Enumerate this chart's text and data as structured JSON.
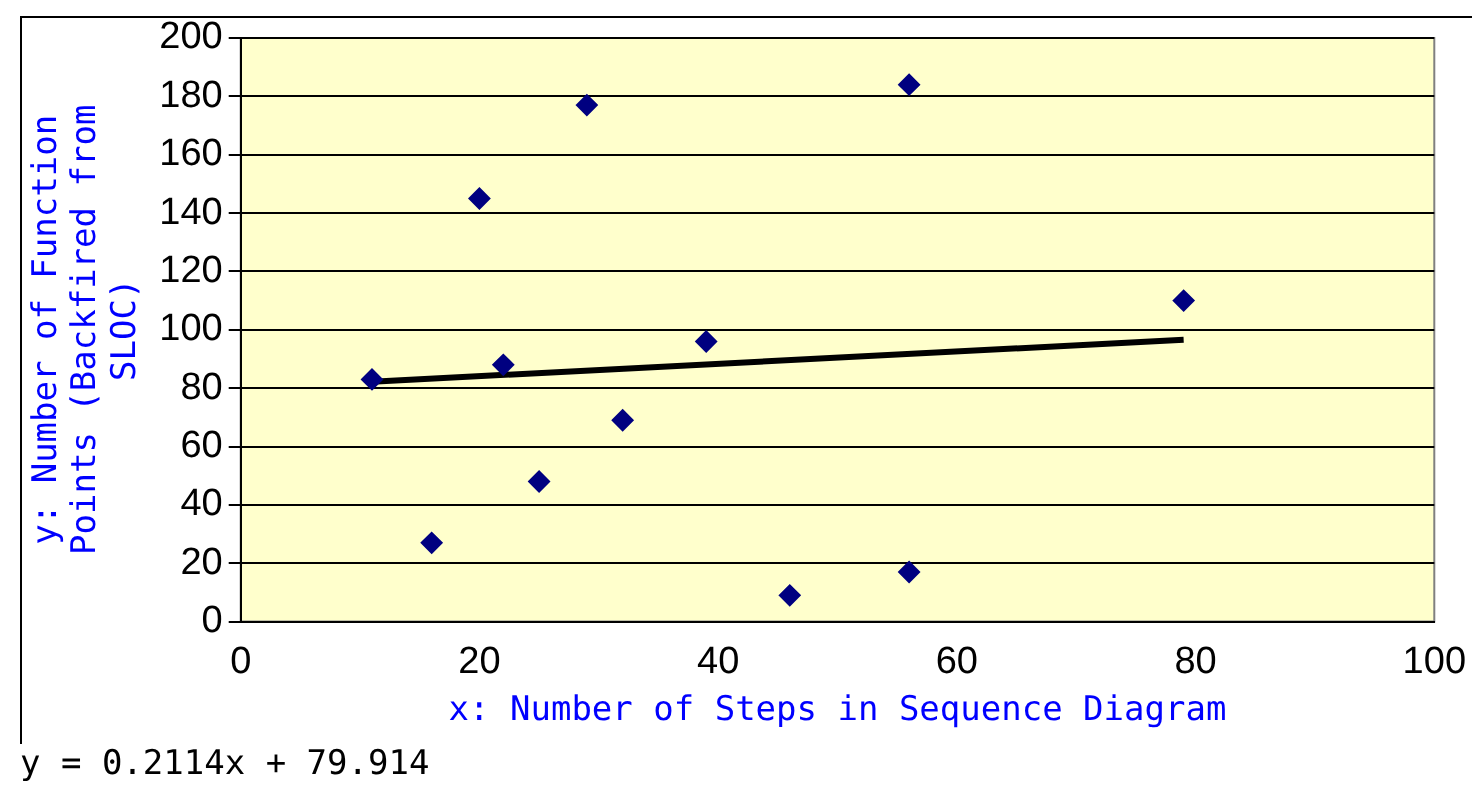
{
  "chart_data": {
    "type": "scatter",
    "xlabel": "x: Number of Steps in Sequence Diagram",
    "ylabel": "y: Number of Function Points (Backfired from SLOC)",
    "annotations": [
      "y = 0.2114x + 79.914"
    ],
    "xlim": [
      0,
      100
    ],
    "xticks": [
      0,
      20,
      40,
      60,
      80,
      100
    ],
    "ylim": [
      0,
      200
    ],
    "yticks": [
      0,
      20,
      40,
      60,
      80,
      100,
      120,
      140,
      160,
      180,
      200
    ],
    "grid": "y",
    "legend": false,
    "marker": "diamond",
    "series": [
      {
        "color": "#000080",
        "x": [
          11,
          16,
          20,
          22,
          25,
          29,
          32,
          39,
          46,
          56,
          56,
          79
        ],
        "values": [
          83,
          27,
          145,
          88,
          48,
          177,
          69,
          96,
          9,
          184,
          17,
          110
        ]
      },
      {
        "type": "line",
        "color": "#000000",
        "x": [
          11,
          79
        ],
        "values": [
          82.2,
          96.6
        ],
        "marker": "none",
        "line_style": "solid"
      }
    ]
  }
}
